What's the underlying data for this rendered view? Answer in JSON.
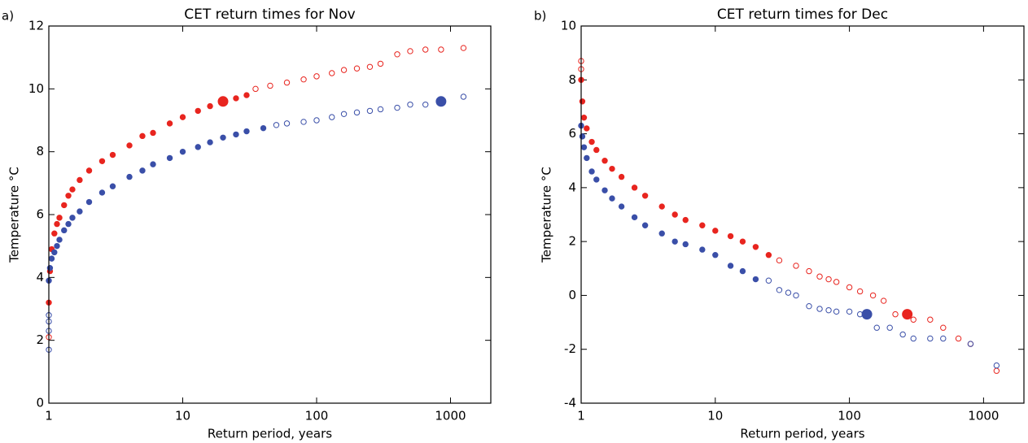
{
  "chart_data": [
    {
      "type": "scatter",
      "panel_label": "a)",
      "title": "CET return times for Nov",
      "xlabel": "Return period, years",
      "ylabel": "Temperature °C",
      "xscale": "log",
      "xlim": [
        1,
        2000
      ],
      "xticks": [
        1,
        10,
        100,
        1000
      ],
      "ylim": [
        0,
        12
      ],
      "yticks": [
        0,
        2,
        4,
        6,
        8,
        10,
        12
      ],
      "series": [
        {
          "color": "#e8251f",
          "marker": "filled",
          "x": [
            1.0,
            1.02,
            1.05,
            1.1,
            1.15,
            1.2,
            1.3,
            1.4,
            1.5,
            1.7,
            2,
            2.5,
            3,
            4,
            5,
            6,
            8,
            10,
            13,
            16,
            20,
            25,
            30
          ],
          "values": [
            3.2,
            4.2,
            4.9,
            5.4,
            5.7,
            5.9,
            6.3,
            6.6,
            6.8,
            7.1,
            7.4,
            7.7,
            7.9,
            8.2,
            8.5,
            8.6,
            8.9,
            9.1,
            9.3,
            9.45,
            9.6,
            9.7,
            9.8
          ]
        },
        {
          "color": "#e8251f",
          "marker": "open",
          "x": [
            1,
            35,
            45,
            60,
            80,
            100,
            130,
            160,
            200,
            250,
            300,
            400,
            500,
            650,
            850,
            1250
          ],
          "values": [
            2.1,
            10.0,
            10.1,
            10.2,
            10.3,
            10.4,
            10.5,
            10.6,
            10.65,
            10.7,
            10.8,
            11.1,
            11.2,
            11.25,
            11.25,
            11.3
          ]
        },
        {
          "color": "#3a4fa8",
          "marker": "filled",
          "x": [
            1.0,
            1.02,
            1.05,
            1.1,
            1.15,
            1.2,
            1.3,
            1.4,
            1.5,
            1.7,
            2,
            2.5,
            3,
            4,
            5,
            6,
            8,
            10,
            13,
            16,
            20,
            25,
            30,
            40
          ],
          "values": [
            3.9,
            4.3,
            4.6,
            4.8,
            5.0,
            5.2,
            5.5,
            5.7,
            5.9,
            6.1,
            6.4,
            6.7,
            6.9,
            7.2,
            7.4,
            7.6,
            7.8,
            8.0,
            8.15,
            8.3,
            8.45,
            8.55,
            8.65,
            8.75
          ]
        },
        {
          "color": "#3a4fa8",
          "marker": "open",
          "x": [
            1,
            1,
            1,
            1,
            50,
            60,
            80,
            100,
            130,
            160,
            200,
            250,
            300,
            400,
            500,
            650,
            1250
          ],
          "values": [
            1.7,
            2.3,
            2.6,
            2.8,
            8.85,
            8.9,
            8.95,
            9.0,
            9.1,
            9.2,
            9.25,
            9.3,
            9.35,
            9.4,
            9.5,
            9.5,
            9.75
          ]
        },
        {
          "color": "#e8251f",
          "marker": "large",
          "x": [
            20
          ],
          "values": [
            9.6
          ]
        },
        {
          "color": "#3a4fa8",
          "marker": "large",
          "x": [
            850
          ],
          "values": [
            9.6
          ]
        }
      ]
    },
    {
      "type": "scatter",
      "panel_label": "b)",
      "title": "CET return times for Dec",
      "xlabel": "Return period, years",
      "ylabel": "Temperature °C",
      "xscale": "log",
      "xlim": [
        1,
        2000
      ],
      "xticks": [
        1,
        10,
        100,
        1000
      ],
      "ylim": [
        -4,
        10
      ],
      "yticks": [
        -4,
        -2,
        0,
        2,
        4,
        6,
        8,
        10
      ],
      "series": [
        {
          "color": "#e8251f",
          "marker": "filled",
          "x": [
            1,
            1.02,
            1.05,
            1.1,
            1.2,
            1.3,
            1.5,
            1.7,
            2,
            2.5,
            3,
            4,
            5,
            6,
            8,
            10,
            13,
            16,
            20,
            25
          ],
          "values": [
            8.0,
            7.2,
            6.6,
            6.2,
            5.7,
            5.4,
            5.0,
            4.7,
            4.4,
            4.0,
            3.7,
            3.3,
            3.0,
            2.8,
            2.6,
            2.4,
            2.2,
            2.0,
            1.8,
            1.5
          ]
        },
        {
          "color": "#e8251f",
          "marker": "open",
          "x": [
            1,
            1,
            30,
            40,
            50,
            60,
            70,
            80,
            100,
            120,
            150,
            180,
            220,
            300,
            400,
            500,
            650,
            800,
            1250
          ],
          "values": [
            8.7,
            8.4,
            1.3,
            1.1,
            0.9,
            0.7,
            0.6,
            0.5,
            0.3,
            0.15,
            0.0,
            -0.2,
            -0.7,
            -0.9,
            -0.9,
            -1.2,
            -1.6,
            -1.8,
            -2.8
          ]
        },
        {
          "color": "#3a4fa8",
          "marker": "filled",
          "x": [
            1,
            1.02,
            1.05,
            1.1,
            1.2,
            1.3,
            1.5,
            1.7,
            2,
            2.5,
            3,
            4,
            5,
            6,
            8,
            10,
            13,
            16,
            20
          ],
          "values": [
            6.3,
            5.9,
            5.5,
            5.1,
            4.6,
            4.3,
            3.9,
            3.6,
            3.3,
            2.9,
            2.6,
            2.3,
            2.0,
            1.9,
            1.7,
            1.5,
            1.1,
            0.9,
            0.6
          ]
        },
        {
          "color": "#3a4fa8",
          "marker": "open",
          "x": [
            25,
            30,
            35,
            40,
            50,
            60,
            70,
            80,
            100,
            120,
            160,
            200,
            250,
            300,
            400,
            500,
            800,
            1250
          ],
          "values": [
            0.55,
            0.2,
            0.1,
            0.0,
            -0.4,
            -0.5,
            -0.55,
            -0.6,
            -0.6,
            -0.7,
            -1.2,
            -1.2,
            -1.45,
            -1.6,
            -1.6,
            -1.6,
            -1.8,
            -2.6
          ]
        },
        {
          "color": "#3a4fa8",
          "marker": "large",
          "x": [
            135
          ],
          "values": [
            -0.7
          ]
        },
        {
          "color": "#e8251f",
          "marker": "large",
          "x": [
            270
          ],
          "values": [
            -0.7
          ]
        }
      ]
    }
  ]
}
